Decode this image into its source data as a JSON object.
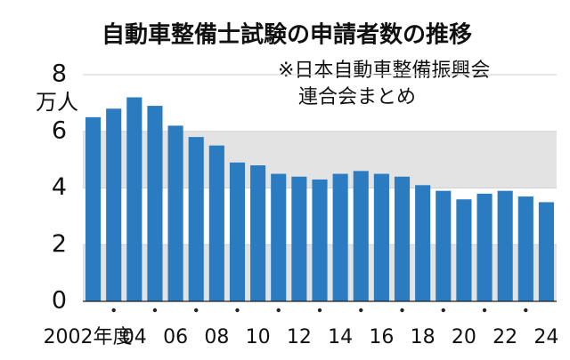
{
  "chart_data": {
    "type": "bar",
    "title": "自動車整備士試験の申請者数の推移",
    "annotation": [
      "※日本自動車整備振興会",
      "連合会まとめ"
    ],
    "y_unit": "万人",
    "categories": [
      "2002年度",
      null,
      "04",
      null,
      "06",
      null,
      "08",
      null,
      "10",
      null,
      "12",
      null,
      "14",
      null,
      "16",
      null,
      "18",
      null,
      "20",
      null,
      "22",
      null,
      "24"
    ],
    "values": [
      6.5,
      6.8,
      7.2,
      6.9,
      6.2,
      5.8,
      5.5,
      4.9,
      4.8,
      4.5,
      4.4,
      4.3,
      4.5,
      4.6,
      4.5,
      4.4,
      4.1,
      3.9,
      3.6,
      3.8,
      3.9,
      3.7,
      3.5
    ],
    "color": "#2b7bc0",
    "ylim": [
      0,
      8
    ],
    "yticks": [
      0,
      2,
      4,
      6,
      8
    ],
    "bands": true
  }
}
